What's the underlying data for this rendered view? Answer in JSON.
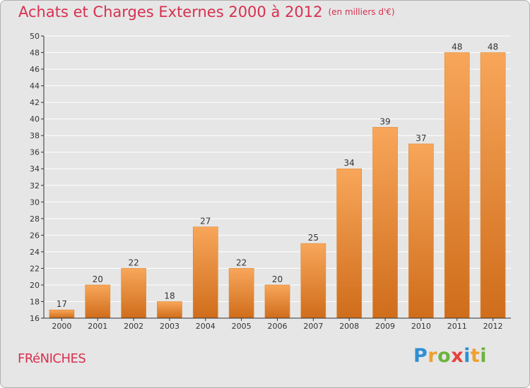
{
  "title": "Achats et Charges Externes 2000 à 2012",
  "subtitle": "(en milliers d'€)",
  "place": "FRéNICHES",
  "logo": {
    "letters": [
      "P",
      "r",
      "o",
      "x",
      "i",
      "t",
      "i"
    ],
    "colors": [
      "#2f8fd4",
      "#f0a030",
      "#6cb33e",
      "#e8403a",
      "#2f8fd4",
      "#f0a030",
      "#6cb33e"
    ]
  },
  "colors": {
    "bar_top": "#f8a65a",
    "bar_bottom": "#cf6d1b",
    "bar_edge": "#e08a36",
    "grid": "#ffffff",
    "axis": "#333333"
  },
  "chart_data": {
    "type": "bar",
    "title": "Achats et Charges Externes 2000 à 2012",
    "xlabel": "",
    "ylabel": "",
    "categories": [
      "2000",
      "2001",
      "2002",
      "2003",
      "2004",
      "2005",
      "2006",
      "2007",
      "2008",
      "2009",
      "2010",
      "2011",
      "2012"
    ],
    "values": [
      17,
      20,
      22,
      18,
      27,
      22,
      20,
      25,
      34,
      39,
      37,
      48,
      48
    ],
    "ylim": [
      16,
      50
    ],
    "yticks": [
      16,
      18,
      20,
      22,
      24,
      26,
      28,
      30,
      32,
      34,
      36,
      38,
      40,
      42,
      44,
      46,
      48,
      50
    ],
    "grid": true
  }
}
